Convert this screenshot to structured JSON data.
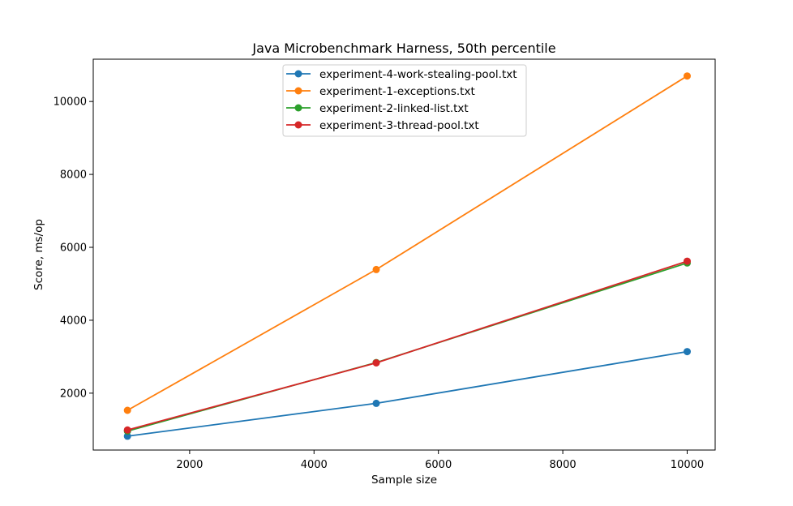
{
  "chart_data": {
    "type": "line",
    "title": "Java Microbenchmark Harness, 50th percentile",
    "xlabel": "Sample size",
    "ylabel": "Score, ms/op",
    "x": [
      1000,
      5000,
      10000
    ],
    "xlim": [
      450,
      10450
    ],
    "ylim": [
      440,
      11160
    ],
    "xticks": [
      2000,
      4000,
      6000,
      8000,
      10000
    ],
    "yticks": [
      2000,
      4000,
      6000,
      8000,
      10000
    ],
    "grid": false,
    "legend_position": "upper center",
    "series": [
      {
        "name": "experiment-4-work-stealing-pool.txt",
        "color": "#1f77b4",
        "values": [
          820,
          1720,
          3140
        ]
      },
      {
        "name": "experiment-1-exceptions.txt",
        "color": "#ff7f0e",
        "values": [
          1530,
          5390,
          10700
        ]
      },
      {
        "name": "experiment-2-linked-list.txt",
        "color": "#2ca02c",
        "values": [
          960,
          2840,
          5570
        ]
      },
      {
        "name": "experiment-3-thread-pool.txt",
        "color": "#d62728",
        "values": [
          990,
          2830,
          5620
        ]
      }
    ]
  }
}
